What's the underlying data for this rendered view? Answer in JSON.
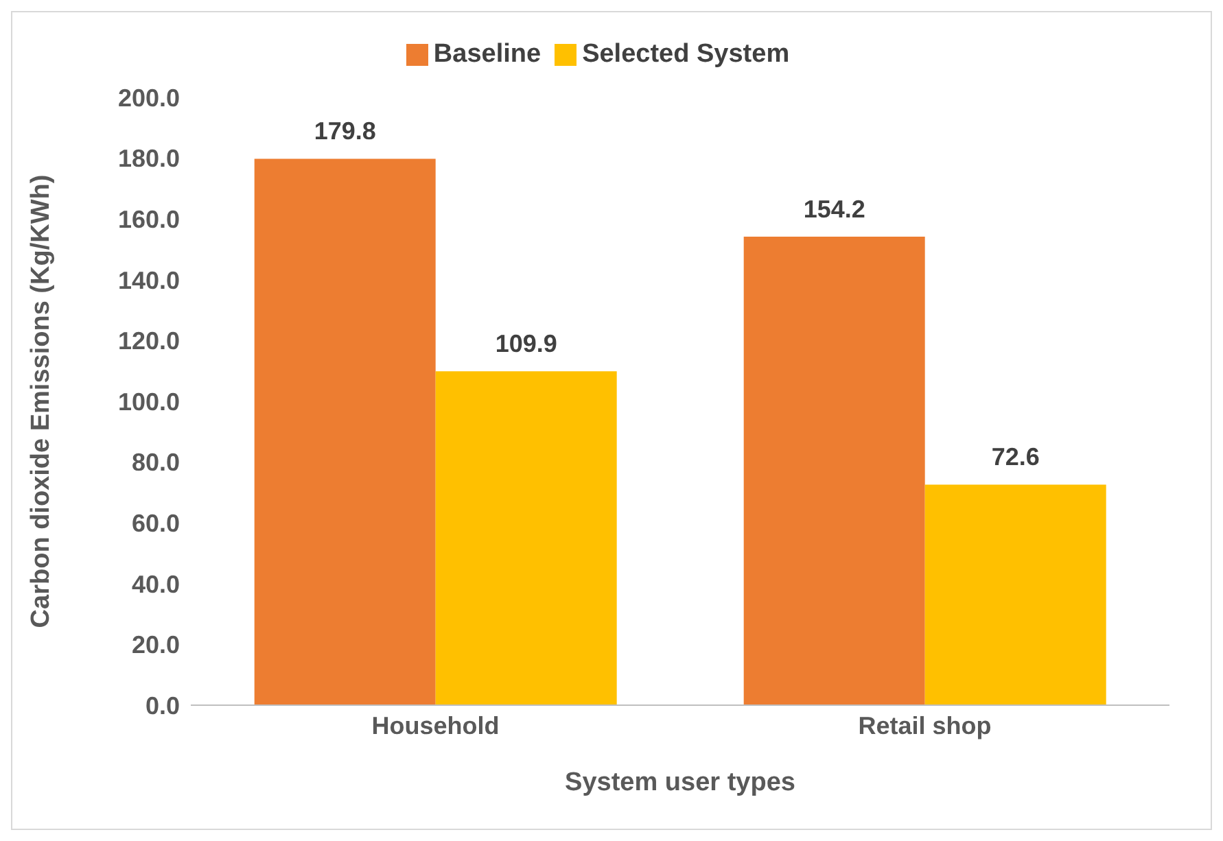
{
  "chart_data": {
    "type": "bar",
    "xlabel": "System user types",
    "ylabel": "Carbon dioxide Emissions (Kg/KWh)",
    "categories": [
      "Household",
      "Retail shop"
    ],
    "series": [
      {
        "name": "Baseline",
        "color": "#ed7d31",
        "values": [
          179.8,
          154.2
        ]
      },
      {
        "name": "Selected System",
        "color": "#ffc000",
        "values": [
          109.9,
          72.6
        ]
      }
    ],
    "ylim": [
      0,
      200
    ],
    "yticks": [
      {
        "value": 0,
        "label": "0.0"
      },
      {
        "value": 20,
        "label": "20.0"
      },
      {
        "value": 40,
        "label": "40.0"
      },
      {
        "value": 60,
        "label": "60.0"
      },
      {
        "value": 80,
        "label": "80.0"
      },
      {
        "value": 100,
        "label": "100.0"
      },
      {
        "value": 120,
        "label": "120.0"
      },
      {
        "value": 140,
        "label": "140.0"
      },
      {
        "value": 160,
        "label": "160.0"
      },
      {
        "value": 180,
        "label": "180.0"
      },
      {
        "value": 200,
        "label": "200.0"
      }
    ],
    "data_labels": true,
    "legend": "top",
    "grid": false
  }
}
